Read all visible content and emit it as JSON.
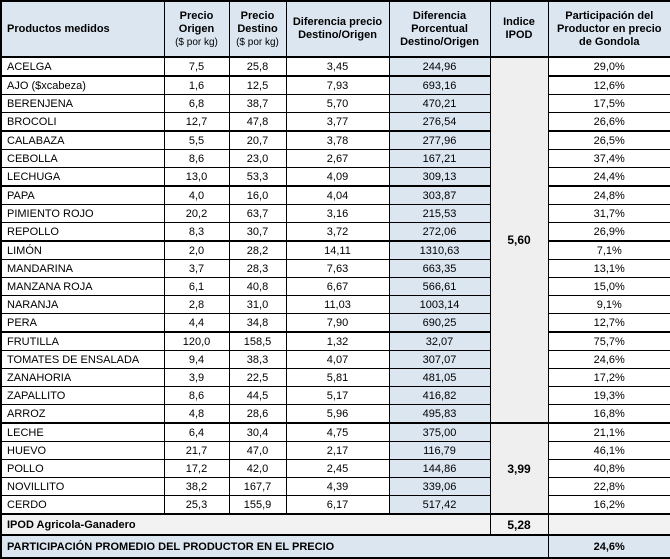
{
  "columns": [
    {
      "lines": [
        "Productos medidos"
      ]
    },
    {
      "lines": [
        "Precio",
        "Origen",
        "($ por kg)"
      ]
    },
    {
      "lines": [
        "Precio",
        "Destino",
        "($ por kg)"
      ]
    },
    {
      "lines": [
        "Diferencia precio",
        "Destino/Origen"
      ]
    },
    {
      "lines": [
        "Diferencia",
        "Porcentual",
        "Destino/Origen"
      ]
    },
    {
      "lines": [
        "Indice",
        "IPOD"
      ]
    },
    {
      "lines": [
        "Participación del",
        "Productor en precio",
        "de Gondola"
      ]
    }
  ],
  "rows": [
    {
      "name": "ACELGA",
      "origen": "7,5",
      "destino": "25,8",
      "dif": "3,45",
      "dif_pct": "244,96",
      "part": "29,0%",
      "group_end": true
    },
    {
      "name": "AJO ($xcabeza)",
      "origen": "1,6",
      "destino": "12,5",
      "dif": "7,93",
      "dif_pct": "693,16",
      "part": "12,6%"
    },
    {
      "name": "BERENJENA",
      "origen": "6,8",
      "destino": "38,7",
      "dif": "5,70",
      "dif_pct": "470,21",
      "part": "17,5%"
    },
    {
      "name": "BROCOLI",
      "origen": "12,7",
      "destino": "47,8",
      "dif": "3,77",
      "dif_pct": "276,54",
      "part": "26,6%",
      "group_end": true
    },
    {
      "name": "CALABAZA",
      "origen": "5,5",
      "destino": "20,7",
      "dif": "3,78",
      "dif_pct": "277,96",
      "part": "26,5%"
    },
    {
      "name": "CEBOLLA",
      "origen": "8,6",
      "destino": "23,0",
      "dif": "2,67",
      "dif_pct": "167,21",
      "part": "37,4%"
    },
    {
      "name": "LECHUGA",
      "origen": "13,0",
      "destino": "53,3",
      "dif": "4,09",
      "dif_pct": "309,13",
      "part": "24,4%",
      "group_end": true
    },
    {
      "name": "PAPA",
      "origen": "4,0",
      "destino": "16,0",
      "dif": "4,04",
      "dif_pct": "303,87",
      "part": "24,8%"
    },
    {
      "name": "PIMIENTO ROJO",
      "origen": "20,2",
      "destino": "63,7",
      "dif": "3,16",
      "dif_pct": "215,53",
      "part": "31,7%"
    },
    {
      "name": "REPOLLO",
      "origen": "8,3",
      "destino": "30,7",
      "dif": "3,72",
      "dif_pct": "272,06",
      "part": "26,9%",
      "group_end": true
    },
    {
      "name": "LIMÓN",
      "origen": "2,0",
      "destino": "28,2",
      "dif": "14,11",
      "dif_pct": "1310,63",
      "part": "7,1%"
    },
    {
      "name": "MANDARINA",
      "origen": "3,7",
      "destino": "28,3",
      "dif": "7,63",
      "dif_pct": "663,35",
      "part": "13,1%"
    },
    {
      "name": "MANZANA ROJA",
      "origen": "6,1",
      "destino": "40,8",
      "dif": "6,67",
      "dif_pct": "566,61",
      "part": "15,0%"
    },
    {
      "name": "NARANJA",
      "origen": "2,8",
      "destino": "31,0",
      "dif": "11,03",
      "dif_pct": "1003,14",
      "part": "9,1%"
    },
    {
      "name": "PERA",
      "origen": "4,4",
      "destino": "34,8",
      "dif": "7,90",
      "dif_pct": "690,25",
      "part": "12,7%",
      "group_end": true
    },
    {
      "name": "FRUTILLA",
      "origen": "120,0",
      "destino": "158,5",
      "dif": "1,32",
      "dif_pct": "32,07",
      "part": "75,7%"
    },
    {
      "name": "TOMATES DE ENSALADA",
      "origen": "9,4",
      "destino": "38,3",
      "dif": "4,07",
      "dif_pct": "307,07",
      "part": "24,6%"
    },
    {
      "name": "ZANAHORIA",
      "origen": "3,9",
      "destino": "22,5",
      "dif": "5,81",
      "dif_pct": "481,05",
      "part": "17,2%"
    },
    {
      "name": "ZAPALLITO",
      "origen": "8,6",
      "destino": "44,5",
      "dif": "5,17",
      "dif_pct": "416,82",
      "part": "19,3%"
    },
    {
      "name": "ARROZ",
      "origen": "4,8",
      "destino": "28,6",
      "dif": "5,96",
      "dif_pct": "495,83",
      "part": "16,8%",
      "group_end": true
    },
    {
      "name": "LECHE",
      "origen": "6,4",
      "destino": "30,4",
      "dif": "4,75",
      "dif_pct": "375,00",
      "part": "21,1%"
    },
    {
      "name": "HUEVO",
      "origen": "21,7",
      "destino": "47,0",
      "dif": "2,17",
      "dif_pct": "116,79",
      "part": "46,1%"
    },
    {
      "name": "POLLO",
      "origen": "17,2",
      "destino": "42,0",
      "dif": "2,45",
      "dif_pct": "144,86",
      "part": "40,8%"
    },
    {
      "name": "NOVILLITO",
      "origen": "38,2",
      "destino": "167,7",
      "dif": "4,39",
      "dif_pct": "339,06",
      "part": "22,8%"
    },
    {
      "name": "CERDO",
      "origen": "25,3",
      "destino": "155,9",
      "dif": "6,17",
      "dif_pct": "517,42",
      "part": "16,2%",
      "group_end": true
    }
  ],
  "ipod_spans": [
    {
      "value": "5,60",
      "rows": 20
    },
    {
      "value": "3,99",
      "rows": 5
    }
  ],
  "footer": {
    "ipod_label": "IPOD Agricola-Ganadero",
    "ipod_value": "5,28",
    "participation_label": "PARTICIPACIÓN PROMEDIO DEL PRODUCTOR EN EL PRECIO",
    "participation_value": "24,6%"
  },
  "colors": {
    "header_bg": "#DCE6F1",
    "pct_col_bg": "#DCE6F1",
    "ipod_col_bg": "#EFEFEF",
    "footer_gray_bg": "#F2F2F2",
    "footer_blue_bg": "#DCE6F1",
    "border": "#000000"
  }
}
